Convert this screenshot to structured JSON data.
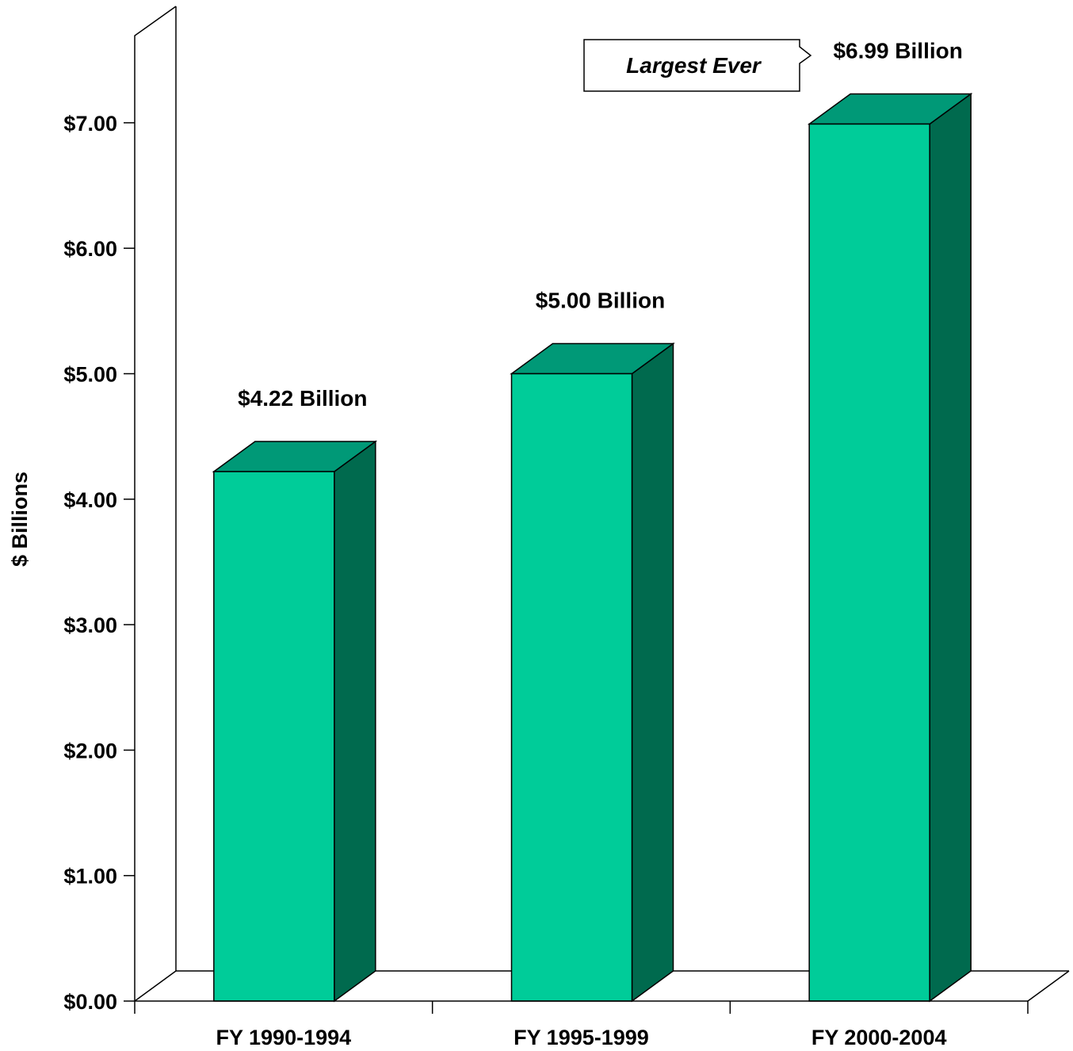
{
  "chart_data": {
    "type": "bar",
    "categories": [
      "FY 1990-1994",
      "FY 1995-1999",
      "FY 2000-2004"
    ],
    "values": [
      4.22,
      5.0,
      6.99
    ],
    "data_labels": [
      "$4.22 Billion",
      "$5.00 Billion",
      "$6.99 Billion"
    ],
    "ylabel": "$ Billions",
    "xlabel": "",
    "title": "",
    "ylim": [
      0,
      7
    ],
    "yticks": [
      0,
      1,
      2,
      3,
      4,
      5,
      6,
      7
    ],
    "ytick_labels": [
      "$0.00",
      "$1.00",
      "$2.00",
      "$3.00",
      "$4.00",
      "$5.00",
      "$6.00",
      "$7.00"
    ],
    "grid": false,
    "style": "3d-bar",
    "annotation": "Largest Ever"
  },
  "colors": {
    "bar_front": "#00cc99",
    "bar_top": "#009977",
    "bar_side": "#006a4e",
    "background": "#ffffff",
    "axis": "#000000"
  }
}
